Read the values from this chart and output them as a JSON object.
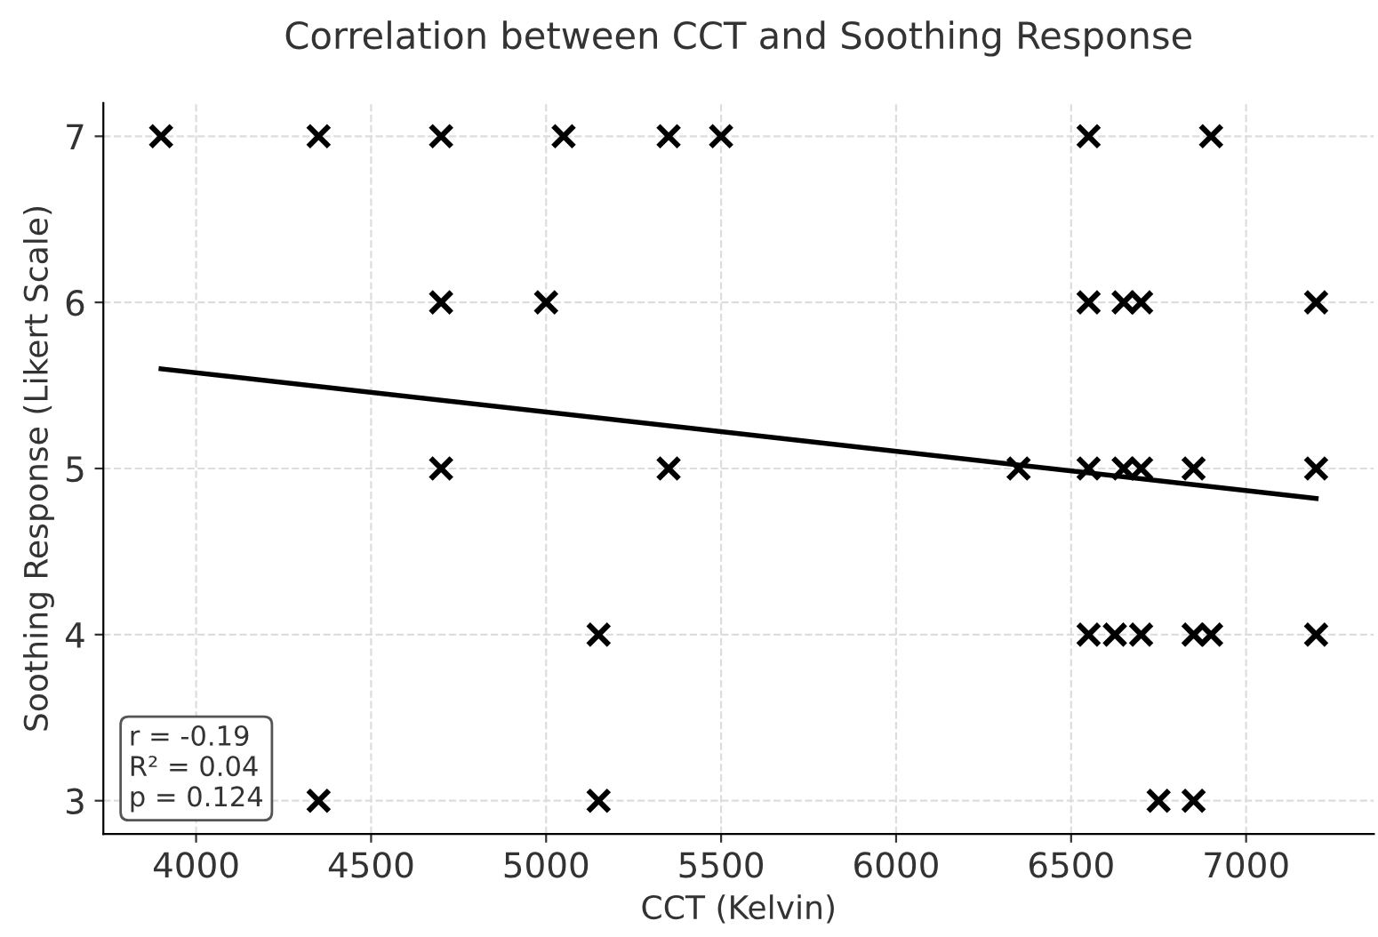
{
  "chart_data": {
    "type": "scatter",
    "title": "Correlation between CCT and Soothing Response",
    "xlabel": "CCT (Kelvin)",
    "ylabel": "Soothing Response (Likert Scale)",
    "series": [
      {
        "color": "#000000",
        "marker": "cross",
        "x": [
          3900,
          4350,
          4700,
          5050,
          5350,
          5500,
          6550,
          6900,
          4700,
          5000,
          6550,
          6650,
          6700,
          7200,
          4700,
          5350,
          6350,
          6550,
          6650,
          6700,
          6850,
          7200,
          5150,
          6550,
          6625,
          6700,
          6850,
          6900,
          7200,
          4350,
          5150,
          6750,
          6850
        ],
        "values": [
          7,
          7,
          7,
          7,
          7,
          7,
          7,
          7,
          6,
          6,
          6,
          6,
          6,
          6,
          5,
          5,
          5,
          5,
          5,
          5,
          5,
          5,
          4,
          4,
          4,
          4,
          4,
          4,
          4,
          3,
          3,
          3,
          3
        ]
      },
      {
        "type": "line",
        "color": "#000000",
        "marker": "none",
        "line_style": "solid",
        "x": [
          3900,
          7200
        ],
        "values": [
          5.6,
          4.82
        ]
      }
    ],
    "xlim": [
      3735,
      7365
    ],
    "xticks": [
      4000,
      4500,
      5000,
      5500,
      6000,
      6500,
      7000
    ],
    "ylim": [
      2.8,
      7.2
    ],
    "yticks": [
      3,
      4,
      5,
      6,
      7
    ],
    "grid": true,
    "annotations": [
      "r = -0.19\nR² = 0.04\np = 0.124"
    ]
  }
}
